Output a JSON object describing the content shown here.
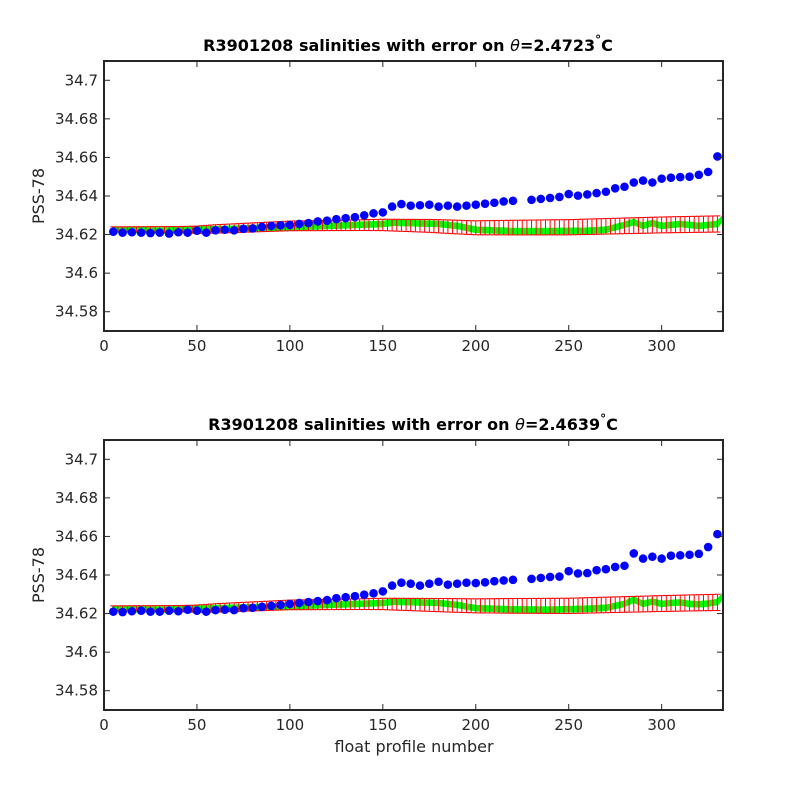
{
  "colors": {
    "float_points": "#0000ff",
    "mapped_fill": "#00ff00",
    "error_bars": "#ff0000",
    "axes": "#262626"
  },
  "chart_data": [
    {
      "type": "scatter",
      "title_main": "R3901208 salinities with error on ",
      "title_theta": "θ",
      "title_value": "=2.4723",
      "title_deg": "°",
      "title_unit": "C",
      "xlabel": "",
      "ylabel": "PSS-78",
      "xlim": [
        0,
        333
      ],
      "ylim": [
        34.57,
        34.71
      ],
      "xticks": [
        "0",
        "50",
        "100",
        "150",
        "200",
        "250",
        "300"
      ],
      "yticks": [
        "34.58",
        "34.6",
        "34.62",
        "34.64",
        "34.66",
        "34.68",
        "34.7"
      ],
      "grid": false,
      "series": [
        {
          "kind": "points",
          "x": [
            5,
            10,
            15,
            20,
            25,
            30,
            35,
            40,
            45,
            50,
            55,
            60,
            65,
            70,
            75,
            80,
            85,
            90,
            95,
            100,
            105,
            110,
            115,
            120,
            125,
            130,
            135,
            140,
            145,
            150,
            155,
            160,
            165,
            170,
            175,
            180,
            185,
            190,
            195,
            200,
            205,
            210,
            215,
            220,
            230,
            235,
            240,
            245,
            250,
            255,
            260,
            265,
            270,
            275,
            280,
            285,
            290,
            295,
            300,
            305,
            310,
            315,
            320,
            325,
            330
          ],
          "y": [
            34.6215,
            34.621,
            34.6212,
            34.621,
            34.6208,
            34.621,
            34.6205,
            34.6212,
            34.621,
            34.622,
            34.621,
            34.6222,
            34.6225,
            34.6222,
            34.623,
            34.6232,
            34.624,
            34.6245,
            34.6248,
            34.625,
            34.6255,
            34.626,
            34.6268,
            34.6272,
            34.628,
            34.6285,
            34.629,
            34.63,
            34.631,
            34.6315,
            34.6345,
            34.6358,
            34.635,
            34.6352,
            34.6355,
            34.6345,
            34.635,
            34.6345,
            34.635,
            34.6355,
            34.636,
            34.6365,
            34.6372,
            34.6375,
            34.638,
            34.6385,
            34.639,
            34.6395,
            34.641,
            34.6402,
            34.6408,
            34.6415,
            34.6422,
            34.644,
            34.6448,
            34.647,
            34.648,
            34.647,
            34.649,
            34.6495,
            34.6498,
            34.65,
            34.651,
            34.6525,
            34.6605
          ]
        },
        {
          "kind": "band",
          "x": [
            5,
            30,
            60,
            100,
            130,
            150,
            155,
            160,
            170,
            180,
            190,
            200,
            220,
            240,
            260,
            270,
            280,
            285,
            290,
            295,
            300,
            305,
            310,
            315,
            320,
            325,
            330,
            333
          ],
          "y": [
            34.6225,
            34.622,
            34.6228,
            34.6238,
            34.6248,
            34.6255,
            34.626,
            34.626,
            34.6258,
            34.6255,
            34.6245,
            34.6225,
            34.6218,
            34.6218,
            34.622,
            34.6225,
            34.625,
            34.6265,
            34.6245,
            34.626,
            34.6245,
            34.625,
            34.6255,
            34.625,
            34.6245,
            34.625,
            34.6255,
            34.6285
          ],
          "half_width": 0.0012
        },
        {
          "kind": "errorbars",
          "x_start": 5,
          "x_end": 330,
          "x_step": 2.5,
          "center": [
            [
              5,
              34.6228
            ],
            [
              50,
              34.6225
            ],
            [
              100,
              34.6245
            ],
            [
              150,
              34.625
            ],
            [
              175,
              34.6245
            ],
            [
              200,
              34.6235
            ],
            [
              250,
              34.6238
            ],
            [
              300,
              34.625
            ],
            [
              330,
              34.6255
            ]
          ],
          "err": [
            [
              5,
              0.0012
            ],
            [
              40,
              0.0016
            ],
            [
              60,
              0.0022
            ],
            [
              100,
              0.0025
            ],
            [
              140,
              0.0028
            ],
            [
              185,
              0.0035
            ],
            [
              220,
              0.0038
            ],
            [
              260,
              0.004
            ],
            [
              330,
              0.0042
            ]
          ]
        }
      ]
    },
    {
      "type": "scatter",
      "title_main": "R3901208 salinities with error on ",
      "title_theta": "θ",
      "title_value": "=2.4639",
      "title_deg": "°",
      "title_unit": "C",
      "xlabel": "float profile number",
      "ylabel": "PSS-78",
      "xlim": [
        0,
        333
      ],
      "ylim": [
        34.57,
        34.71
      ],
      "xticks": [
        "0",
        "50",
        "100",
        "150",
        "200",
        "250",
        "300"
      ],
      "yticks": [
        "34.58",
        "34.6",
        "34.62",
        "34.64",
        "34.66",
        "34.68",
        "34.7"
      ],
      "grid": false,
      "series": [
        {
          "kind": "points",
          "x": [
            5,
            10,
            15,
            20,
            25,
            30,
            35,
            40,
            45,
            50,
            55,
            60,
            65,
            70,
            75,
            80,
            85,
            90,
            95,
            100,
            105,
            110,
            115,
            120,
            125,
            130,
            135,
            140,
            145,
            150,
            155,
            160,
            165,
            170,
            175,
            180,
            185,
            190,
            195,
            200,
            205,
            210,
            215,
            220,
            230,
            235,
            240,
            245,
            250,
            255,
            260,
            265,
            270,
            275,
            280,
            285,
            290,
            295,
            300,
            305,
            310,
            315,
            320,
            325,
            330
          ],
          "y": [
            34.621,
            34.6208,
            34.6212,
            34.6215,
            34.621,
            34.621,
            34.6215,
            34.6212,
            34.622,
            34.6215,
            34.621,
            34.6218,
            34.622,
            34.6218,
            34.6228,
            34.623,
            34.6235,
            34.624,
            34.6245,
            34.625,
            34.6255,
            34.626,
            34.6265,
            34.627,
            34.628,
            34.6285,
            34.629,
            34.6298,
            34.6305,
            34.6315,
            34.6345,
            34.636,
            34.6355,
            34.6345,
            34.6355,
            34.6365,
            34.635,
            34.6355,
            34.636,
            34.6358,
            34.6362,
            34.6368,
            34.6372,
            34.6375,
            34.638,
            34.6385,
            34.639,
            34.6392,
            34.642,
            34.6408,
            34.641,
            34.6425,
            34.643,
            34.6442,
            34.6448,
            34.6512,
            34.6485,
            34.6495,
            34.6485,
            34.65,
            34.6502,
            34.6505,
            34.651,
            34.6545,
            34.6612
          ]
        },
        {
          "kind": "band",
          "x": [
            5,
            30,
            60,
            100,
            130,
            150,
            155,
            160,
            170,
            180,
            190,
            200,
            220,
            240,
            260,
            270,
            280,
            285,
            290,
            295,
            300,
            305,
            310,
            315,
            320,
            325,
            330,
            333
          ],
          "y": [
            34.6225,
            34.622,
            34.6228,
            34.6238,
            34.6248,
            34.6255,
            34.626,
            34.626,
            34.6258,
            34.6255,
            34.6245,
            34.6228,
            34.6222,
            34.622,
            34.6225,
            34.623,
            34.625,
            34.6272,
            34.625,
            34.6262,
            34.625,
            34.6255,
            34.6258,
            34.625,
            34.6248,
            34.6252,
            34.626,
            34.6292
          ],
          "half_width": 0.0012
        },
        {
          "kind": "errorbars",
          "x_start": 5,
          "x_end": 330,
          "x_step": 2.5,
          "center": [
            [
              5,
              34.6228
            ],
            [
              50,
              34.6225
            ],
            [
              100,
              34.6245
            ],
            [
              150,
              34.625
            ],
            [
              175,
              34.6245
            ],
            [
              200,
              34.624
            ],
            [
              250,
              34.624
            ],
            [
              300,
              34.6252
            ],
            [
              330,
              34.6258
            ]
          ],
          "err": [
            [
              5,
              0.0012
            ],
            [
              40,
              0.0016
            ],
            [
              60,
              0.0022
            ],
            [
              100,
              0.0025
            ],
            [
              140,
              0.0028
            ],
            [
              185,
              0.0035
            ],
            [
              220,
              0.0038
            ],
            [
              260,
              0.004
            ],
            [
              330,
              0.0042
            ]
          ]
        }
      ]
    }
  ]
}
